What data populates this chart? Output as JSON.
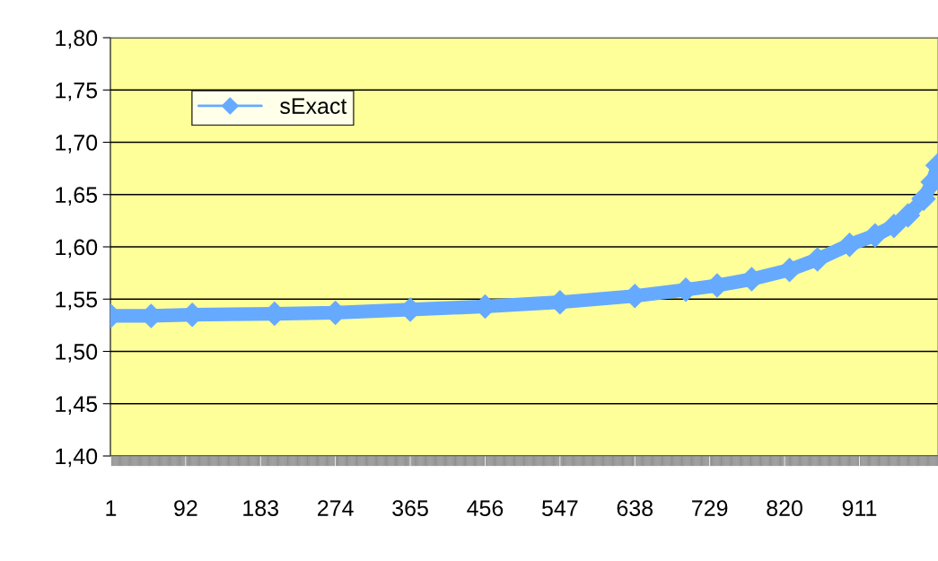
{
  "chart_data": {
    "type": "line",
    "x": [
      1,
      50,
      100,
      200,
      274,
      365,
      456,
      547,
      638,
      700,
      738,
      780,
      826,
      860,
      899,
      930,
      953,
      970,
      989,
      1000,
      1006
    ],
    "series": [
      {
        "name": "sExact",
        "color": "#66aaff",
        "values": [
          1.534,
          1.534,
          1.535,
          1.536,
          1.537,
          1.54,
          1.543,
          1.547,
          1.553,
          1.559,
          1.563,
          1.569,
          1.578,
          1.588,
          1.602,
          1.611,
          1.62,
          1.63,
          1.646,
          1.662,
          1.678
        ]
      }
    ],
    "xlim": [
      0.5,
      1006.5
    ],
    "xticks": [
      1,
      92,
      183,
      274,
      365,
      456,
      547,
      638,
      729,
      820,
      911
    ],
    "ylim": [
      1.4,
      1.8
    ],
    "yticks": [
      {
        "value": 1.4,
        "label": "1,40"
      },
      {
        "value": 1.45,
        "label": "1,45"
      },
      {
        "value": 1.5,
        "label": "1,50"
      },
      {
        "value": 1.55,
        "label": "1,55"
      },
      {
        "value": 1.6,
        "label": "1,60"
      },
      {
        "value": 1.65,
        "label": "1,65"
      },
      {
        "value": 1.7,
        "label": "1,70"
      },
      {
        "value": 1.75,
        "label": "1,75"
      },
      {
        "value": 1.8,
        "label": "1,80"
      }
    ],
    "grid": "y",
    "legend": "top left",
    "marker": "diamond",
    "line_style": "solid"
  }
}
